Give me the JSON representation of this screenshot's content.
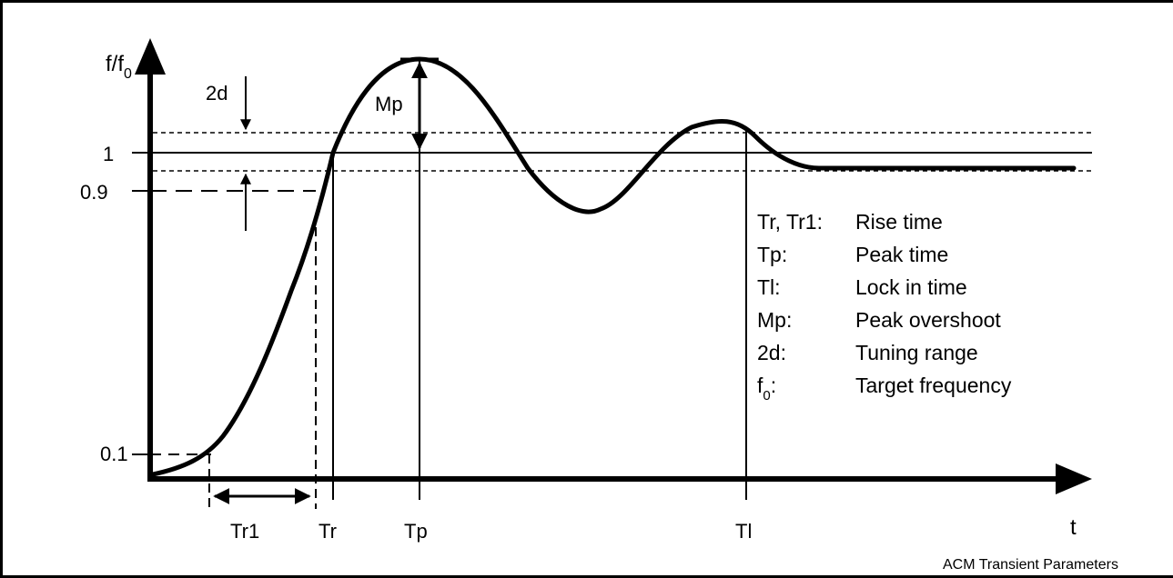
{
  "axes": {
    "y_label": "f/f",
    "y_label_sub": "0",
    "x_label": "t"
  },
  "y_ticks": {
    "one": "1",
    "p9": "0.9",
    "p1": "0.1"
  },
  "x_markers": {
    "tr1": "Tr1",
    "tr": "Tr",
    "tp": "Tp",
    "tl": "Tl"
  },
  "annotations": {
    "mp": "Mp",
    "two_d": "2d"
  },
  "legend": [
    {
      "term": "Tr, Tr1:",
      "desc": "Rise time"
    },
    {
      "term": "Tp:",
      "desc": "Peak time"
    },
    {
      "term": "Tl:",
      "desc": "Lock in time"
    },
    {
      "term": "Mp:",
      "desc": "Peak overshoot"
    },
    {
      "term": "2d:",
      "desc": "Tuning range"
    },
    {
      "term": "f",
      "term_sub": "0",
      "term_tail": ":",
      "desc": "Target frequency"
    }
  ],
  "caption": "ACM Transient Parameters"
}
